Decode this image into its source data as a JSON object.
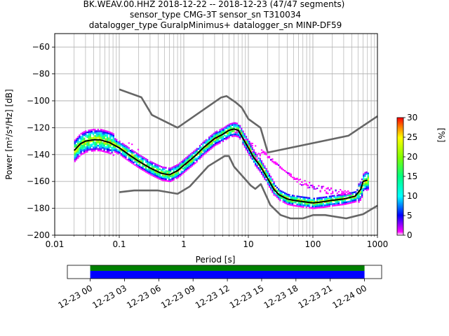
{
  "chart_data": {
    "type": "heatmap",
    "title": {
      "line1": "BK.WEAV.00.HHZ   2018-12-22 -- 2018-12-23  (47/47 segments)",
      "line2": "sensor_type CMG-3T sensor_sn T310034",
      "line3": "datalogger_type GuralpMinimus+ datalogger_sn MINP-DF59"
    },
    "xlabel": "Period [s]",
    "ylabel": "Power [m²/s⁴/Hz] [dB]",
    "xscale": "log",
    "xlim": [
      0.01,
      1000
    ],
    "ylim": [
      -200,
      -50
    ],
    "xticks": [
      {
        "v": 0.01,
        "label": "0.01"
      },
      {
        "v": 0.1,
        "label": "0.1"
      },
      {
        "v": 1,
        "label": "1"
      },
      {
        "v": 10,
        "label": "10"
      },
      {
        "v": 100,
        "label": "100"
      },
      {
        "v": 1000,
        "label": "1000"
      }
    ],
    "yticks": [
      {
        "v": -60,
        "label": "−60"
      },
      {
        "v": -80,
        "label": "−80"
      },
      {
        "v": -100,
        "label": "−100"
      },
      {
        "v": -120,
        "label": "−120"
      },
      {
        "v": -140,
        "label": "−140"
      },
      {
        "v": -160,
        "label": "−160"
      },
      {
        "v": -180,
        "label": "−180"
      },
      {
        "v": -200,
        "label": "−200"
      }
    ],
    "grid": true,
    "colorbar": {
      "label": "[%]",
      "range": [
        0,
        30
      ],
      "ticks": [
        {
          "v": 0,
          "label": "0"
        },
        {
          "v": 5,
          "label": "5"
        },
        {
          "v": 10,
          "label": "10"
        },
        {
          "v": 15,
          "label": "15"
        },
        {
          "v": 20,
          "label": "20"
        },
        {
          "v": 25,
          "label": "25"
        },
        {
          "v": 30,
          "label": "30"
        }
      ]
    },
    "mean_curve": [
      [
        0.02,
        -137
      ],
      [
        0.025,
        -132
      ],
      [
        0.03,
        -130
      ],
      [
        0.04,
        -129
      ],
      [
        0.05,
        -129
      ],
      [
        0.07,
        -131
      ],
      [
        0.1,
        -135
      ],
      [
        0.15,
        -141
      ],
      [
        0.2,
        -145
      ],
      [
        0.3,
        -150
      ],
      [
        0.45,
        -154
      ],
      [
        0.6,
        -155
      ],
      [
        0.8,
        -152
      ],
      [
        1,
        -148
      ],
      [
        1.5,
        -141
      ],
      [
        2,
        -135
      ],
      [
        3,
        -128
      ],
      [
        4,
        -125
      ],
      [
        5,
        -122
      ],
      [
        6,
        -121
      ],
      [
        7,
        -122
      ],
      [
        8,
        -127
      ],
      [
        10,
        -135
      ],
      [
        12,
        -142
      ],
      [
        15,
        -148
      ],
      [
        20,
        -158
      ],
      [
        25,
        -166
      ],
      [
        30,
        -170
      ],
      [
        40,
        -173
      ],
      [
        50,
        -174
      ],
      [
        70,
        -175
      ],
      [
        100,
        -176
      ],
      [
        150,
        -175
      ],
      [
        200,
        -174
      ],
      [
        300,
        -173
      ],
      [
        450,
        -171
      ],
      [
        550,
        -166
      ],
      [
        600,
        -160
      ],
      [
        700,
        -159
      ]
    ],
    "noise_model_high": [
      [
        0.1,
        -91.5
      ],
      [
        0.22,
        -97.4
      ],
      [
        0.32,
        -110.5
      ],
      [
        0.8,
        -120
      ],
      [
        3.8,
        -97.5
      ],
      [
        4.6,
        -96.5
      ],
      [
        6.3,
        -101
      ],
      [
        7.9,
        -105
      ],
      [
        10,
        -113.5
      ],
      [
        15.4,
        -120
      ],
      [
        20,
        -138.5
      ],
      [
        354.8,
        -126
      ],
      [
        1000,
        -111.5
      ]
    ],
    "noise_model_low": [
      [
        0.1,
        -168
      ],
      [
        0.17,
        -166.7
      ],
      [
        0.4,
        -166.7
      ],
      [
        0.8,
        -169.2
      ],
      [
        1.24,
        -163.7
      ],
      [
        2.4,
        -148.6
      ],
      [
        4.3,
        -141.1
      ],
      [
        5,
        -141.1
      ],
      [
        6,
        -149
      ],
      [
        10.9,
        -163
      ],
      [
        12.8,
        -165.5
      ],
      [
        15.6,
        -162
      ],
      [
        21.9,
        -177.5
      ],
      [
        31.6,
        -185
      ],
      [
        45,
        -187.5
      ],
      [
        70,
        -187.5
      ],
      [
        101,
        -185
      ],
      [
        154,
        -185
      ],
      [
        328,
        -187.5
      ],
      [
        600,
        -184.4
      ],
      [
        1000,
        -178
      ]
    ],
    "scatter_band_low": [
      [
        6,
        -125
      ],
      [
        10,
        -130
      ],
      [
        20,
        -140
      ],
      [
        35,
        -152
      ],
      [
        60,
        -162
      ],
      [
        100,
        -167
      ],
      [
        200,
        -170
      ],
      [
        400,
        -170
      ]
    ],
    "scatter_band_high": [
      [
        15,
        -138
      ],
      [
        30,
        -150
      ],
      [
        60,
        -158
      ],
      [
        120,
        -163
      ],
      [
        250,
        -166
      ],
      [
        450,
        -168
      ]
    ],
    "segment_timeline": {
      "start": "2018-12-22T22:00",
      "end": "2018-12-24T01:30",
      "covered_start": "2018-12-23T00:00",
      "covered_end": "2018-12-24T00:00",
      "tick_labels": [
        "12-23 00",
        "12-23 03",
        "12-23 06",
        "12-23 09",
        "12-23 12",
        "12-23 15",
        "12-23 18",
        "12-23 21",
        "12-24 00"
      ],
      "tick_hours": [
        0,
        3,
        6,
        9,
        12,
        15,
        18,
        21,
        24
      ],
      "bar_colors": [
        "#008000",
        "#0000ff"
      ]
    }
  }
}
